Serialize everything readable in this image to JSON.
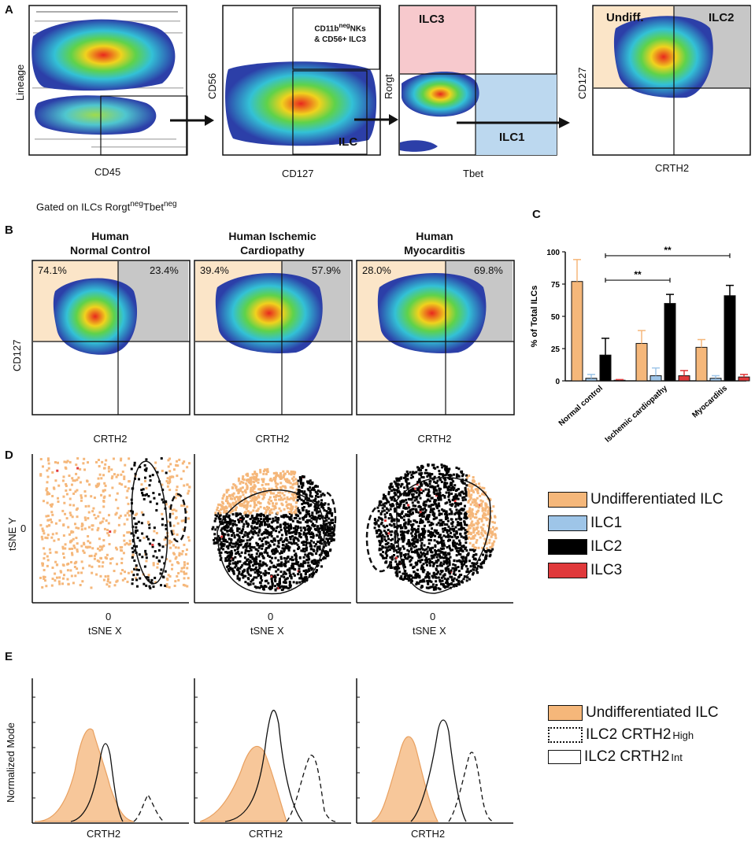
{
  "figure": {
    "panel_labels": [
      "A",
      "B",
      "C",
      "D",
      "E"
    ],
    "colors": {
      "undifferentiated": "#f5b77a",
      "undiff_bg": "#fbe5c8",
      "ilc1": "#9ec5e8",
      "ilc2": "#000000",
      "ilc3": "#e0393b",
      "ilc2_bg": "#c7c7c7",
      "ilc3_bg": "#f7c9cd",
      "ilc1_bg": "#bcd8ef",
      "density_outer": "#2c3fa8",
      "density_mid": "#33c1d6",
      "density_hot": "#e8281e"
    }
  },
  "panelA": {
    "plot1": {
      "ylabel": "Lineage",
      "xlabel": "CD45"
    },
    "plot2": {
      "ylabel": "CD56",
      "xlabel": "CD127",
      "gate_top_line1": "CD11b",
      "gate_top_sup": "neg",
      "gate_top_line1b": "NKs",
      "gate_top_line2": "& CD56+ ILC3",
      "gate_bottom": "ILC"
    },
    "plot3": {
      "ylabel": "Rorgt",
      "xlabel": "Tbet",
      "gate_ilc3": "ILC3",
      "gate_ilc1": "ILC1"
    },
    "plot4": {
      "ylabel": "CD127",
      "xlabel": "CRTH2",
      "gate_undiff": "Undiff.",
      "gate_ilc2": "ILC2"
    }
  },
  "panelB": {
    "gated_prefix": "Gated on ILCs Rorgt",
    "gated_sup1": "neg",
    "gated_mid": "Tbet",
    "gated_sup2": "neg",
    "ylabel": "CD127",
    "xlabel": "CRTH2",
    "plots": [
      {
        "title_line1": "Human",
        "title_line2": "Normal Control",
        "left_pct": "74.1%",
        "right_pct": "23.4%"
      },
      {
        "title_line1": "Human Ischemic",
        "title_line2": "Cardiopathy",
        "left_pct": "39.4%",
        "right_pct": "57.9%"
      },
      {
        "title_line1": "Human",
        "title_line2": "Myocarditis",
        "left_pct": "28.0%",
        "right_pct": "69.8%"
      }
    ]
  },
  "chart_data": {
    "type": "bar",
    "ylabel": "% of Total ILCs",
    "ylim": [
      0,
      100
    ],
    "yticks": [
      "0",
      "25",
      "50",
      "75",
      "100"
    ],
    "categories": [
      "Normal control",
      "Ischemic cardiopathy",
      "Myocarditis"
    ],
    "series": [
      {
        "name": "Undifferentiated ILC",
        "values": [
          77,
          29,
          26
        ],
        "errors": [
          17,
          10,
          6
        ]
      },
      {
        "name": "ILC1",
        "values": [
          2,
          4,
          2
        ],
        "errors": [
          3,
          6,
          2
        ]
      },
      {
        "name": "ILC2",
        "values": [
          20,
          60,
          66
        ],
        "errors": [
          13,
          7,
          8
        ]
      },
      {
        "name": "ILC3",
        "values": [
          0.5,
          4,
          3
        ],
        "errors": [
          0.5,
          4,
          2
        ]
      }
    ],
    "significance": [
      {
        "label": "**",
        "from": "Normal control",
        "to": "Myocarditis"
      },
      {
        "label": "**",
        "from": "Normal control",
        "to": "Ischemic cardiopathy"
      }
    ]
  },
  "panelD": {
    "ylabel": "tSNE Y",
    "xlabel": "tSNE X",
    "tick_zero": "0",
    "legend": [
      "Undifferentiated ILC",
      "ILC1",
      "ILC2",
      "ILC3"
    ]
  },
  "panelE": {
    "ylabel": "Normalized Mode",
    "xlabel": "CRTH2",
    "legend": [
      {
        "label": "Undifferentiated ILC",
        "sup": ""
      },
      {
        "label": "ILC2 CRTH2",
        "sup": "High"
      },
      {
        "label": "ILC2 CRTH2",
        "sup": "Int"
      }
    ]
  }
}
